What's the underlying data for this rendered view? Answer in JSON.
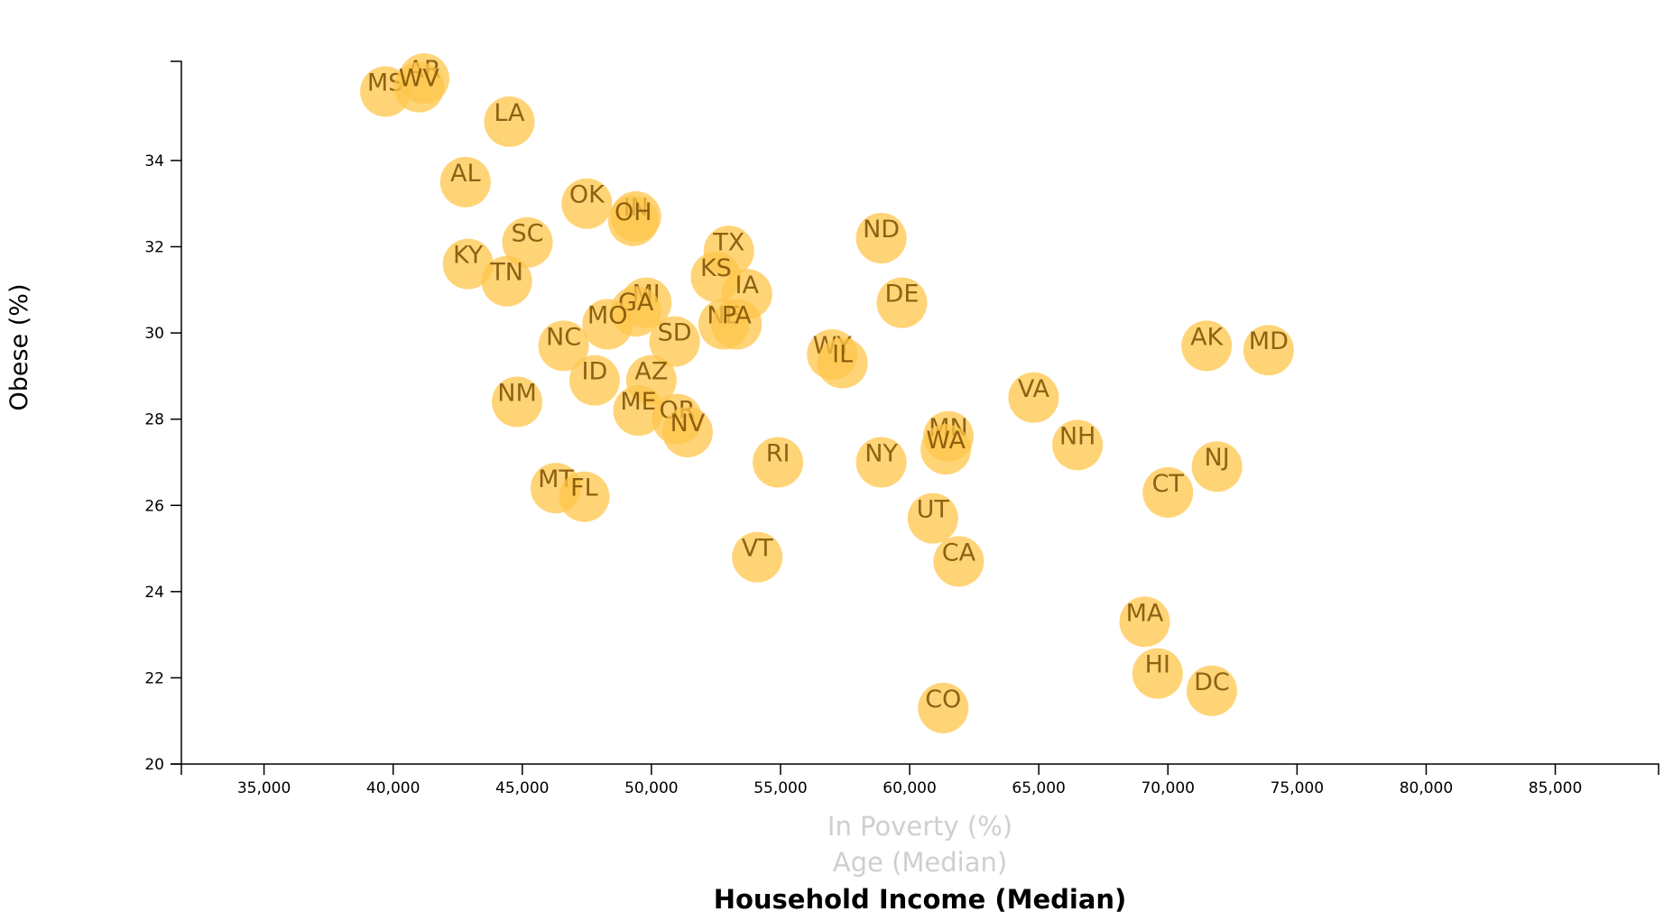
{
  "chart_data": {
    "type": "scatter",
    "title": "",
    "xlabel": "Household Income (Median)",
    "ylabel": "Obese (%)",
    "x_axis_options": [
      {
        "label": "In Poverty (%)",
        "active": false
      },
      {
        "label": "Age (Median)",
        "active": false
      },
      {
        "label": "Household Income (Median)",
        "active": true
      }
    ],
    "xlim": [
      31800,
      89000
    ],
    "ylim": [
      20,
      36.3
    ],
    "x_ticks": [
      35000,
      40000,
      45000,
      50000,
      55000,
      60000,
      65000,
      70000,
      75000,
      80000,
      85000
    ],
    "x_tick_labels": [
      "35,000",
      "40,000",
      "45,000",
      "50,000",
      "55,000",
      "60,000",
      "65,000",
      "70,000",
      "75,000",
      "80,000",
      "85,000"
    ],
    "y_ticks": [
      20,
      22,
      24,
      26,
      28,
      30,
      32,
      34
    ],
    "y_tick_labels": [
      "20",
      "22",
      "24",
      "26",
      "28",
      "30",
      "32",
      "34"
    ],
    "grid": false,
    "marker_color": "#ffc54a",
    "label_color": "#7a4e00",
    "points": [
      {
        "label": "MS",
        "x": 39700,
        "y": 35.6
      },
      {
        "label": "AR",
        "x": 41200,
        "y": 35.9
      },
      {
        "label": "WV",
        "x": 41000,
        "y": 35.7
      },
      {
        "label": "LA",
        "x": 44500,
        "y": 34.9
      },
      {
        "label": "AL",
        "x": 42800,
        "y": 33.5
      },
      {
        "label": "OK",
        "x": 47500,
        "y": 33.0
      },
      {
        "label": "IN",
        "x": 49400,
        "y": 32.7
      },
      {
        "label": "OH",
        "x": 49300,
        "y": 32.6
      },
      {
        "label": "SC",
        "x": 45200,
        "y": 32.1
      },
      {
        "label": "KY",
        "x": 42900,
        "y": 31.6
      },
      {
        "label": "TN",
        "x": 44400,
        "y": 31.2
      },
      {
        "label": "TX",
        "x": 53000,
        "y": 31.9
      },
      {
        "label": "ND",
        "x": 58900,
        "y": 32.2
      },
      {
        "label": "KS",
        "x": 52500,
        "y": 31.3
      },
      {
        "label": "MI",
        "x": 49800,
        "y": 30.7
      },
      {
        "label": "GA",
        "x": 49400,
        "y": 30.5
      },
      {
        "label": "IA",
        "x": 53700,
        "y": 30.9
      },
      {
        "label": "MO",
        "x": 48300,
        "y": 30.2
      },
      {
        "label": "NE",
        "x": 52800,
        "y": 30.2
      },
      {
        "label": "PA",
        "x": 53300,
        "y": 30.2
      },
      {
        "label": "DE",
        "x": 59700,
        "y": 30.7
      },
      {
        "label": "SD",
        "x": 50900,
        "y": 29.8
      },
      {
        "label": "NC",
        "x": 46600,
        "y": 29.7
      },
      {
        "label": "WY",
        "x": 57000,
        "y": 29.5
      },
      {
        "label": "IL",
        "x": 57400,
        "y": 29.3
      },
      {
        "label": "AK",
        "x": 71500,
        "y": 29.7
      },
      {
        "label": "MD",
        "x": 73900,
        "y": 29.6
      },
      {
        "label": "ID",
        "x": 47800,
        "y": 28.9
      },
      {
        "label": "AZ",
        "x": 50000,
        "y": 28.9
      },
      {
        "label": "VA",
        "x": 64800,
        "y": 28.5
      },
      {
        "label": "NM",
        "x": 44800,
        "y": 28.4
      },
      {
        "label": "ME",
        "x": 49500,
        "y": 28.2
      },
      {
        "label": "OR",
        "x": 51000,
        "y": 28.0
      },
      {
        "label": "NV",
        "x": 51400,
        "y": 27.7
      },
      {
        "label": "MN",
        "x": 61500,
        "y": 27.6
      },
      {
        "label": "WA",
        "x": 61400,
        "y": 27.3
      },
      {
        "label": "NH",
        "x": 66500,
        "y": 27.4
      },
      {
        "label": "RI",
        "x": 54900,
        "y": 27.0
      },
      {
        "label": "NY",
        "x": 58900,
        "y": 27.0
      },
      {
        "label": "NJ",
        "x": 71900,
        "y": 26.9
      },
      {
        "label": "MT",
        "x": 46300,
        "y": 26.4
      },
      {
        "label": "FL",
        "x": 47400,
        "y": 26.2
      },
      {
        "label": "CT",
        "x": 70000,
        "y": 26.3
      },
      {
        "label": "UT",
        "x": 60900,
        "y": 25.7
      },
      {
        "label": "CA",
        "x": 61900,
        "y": 24.7
      },
      {
        "label": "VT",
        "x": 54100,
        "y": 24.8
      },
      {
        "label": "MA",
        "x": 69100,
        "y": 23.3
      },
      {
        "label": "HI",
        "x": 69600,
        "y": 22.1
      },
      {
        "label": "DC",
        "x": 71700,
        "y": 21.7
      },
      {
        "label": "CO",
        "x": 61300,
        "y": 21.3
      }
    ]
  }
}
